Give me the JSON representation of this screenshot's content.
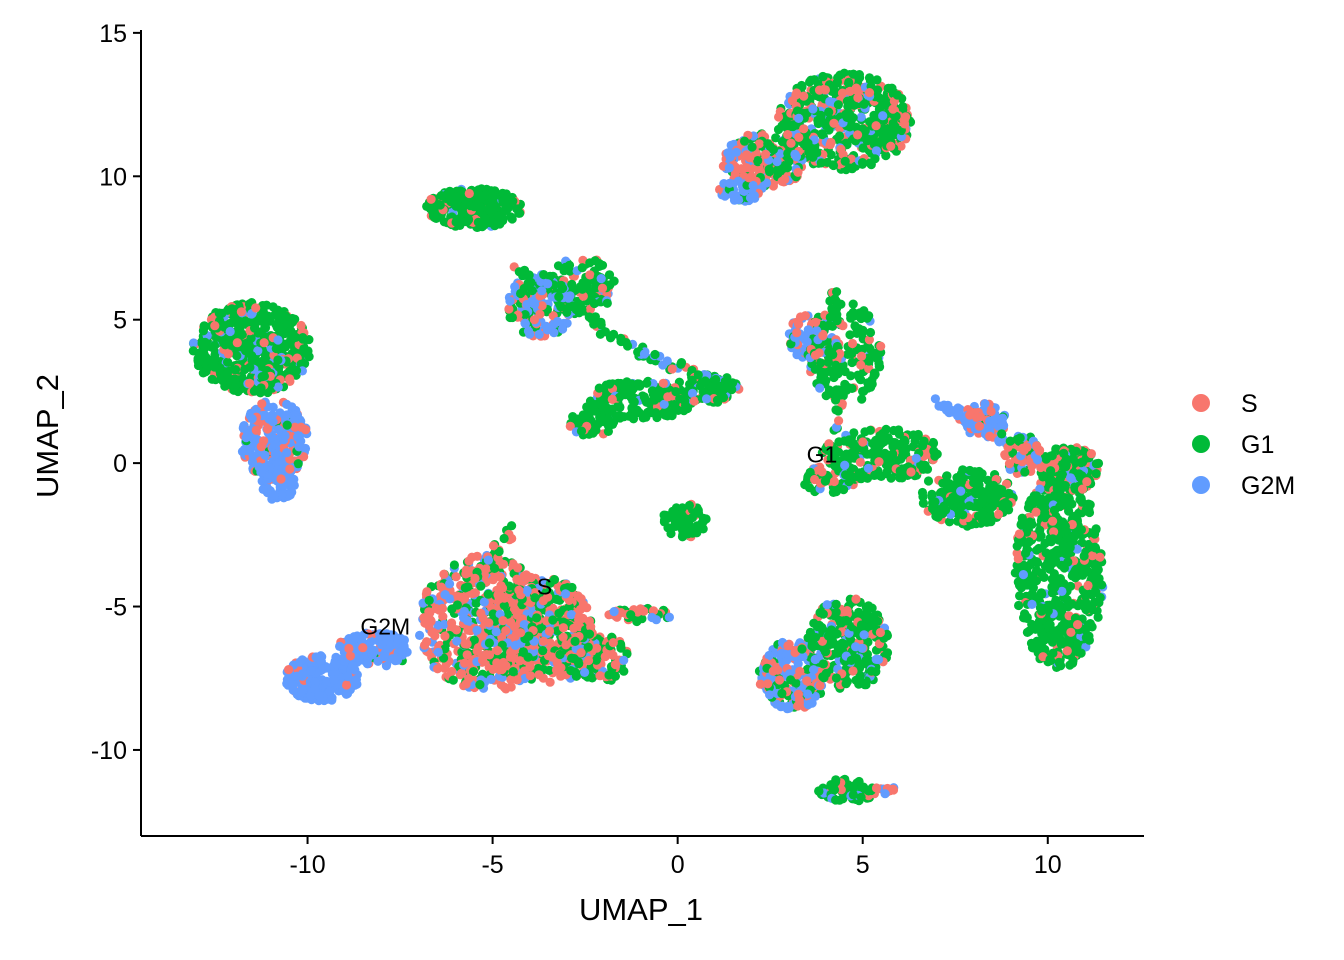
{
  "chart_data": {
    "type": "scatter",
    "title": "",
    "xlabel": "UMAP_1",
    "ylabel": "UMAP_2",
    "xlim": [
      -14.5,
      12.6
    ],
    "ylim": [
      -13.0,
      15.1
    ],
    "x_ticks": [
      -10,
      -5,
      0,
      5,
      10
    ],
    "y_ticks": [
      -10,
      -5,
      0,
      5,
      10,
      15
    ],
    "x_tick_labels": [
      "-10",
      "-5",
      "0",
      "5",
      "10"
    ],
    "y_tick_labels": [
      "-10",
      "-5",
      "0",
      "5",
      "10",
      "15"
    ],
    "grid": false,
    "legend": {
      "position": "right",
      "entries": [
        {
          "name": "S",
          "color": "#F8766D"
        },
        {
          "name": "G1",
          "color": "#00BA38"
        },
        {
          "name": "G2M",
          "color": "#619CFF"
        }
      ]
    },
    "series": [
      {
        "name": "S",
        "color": "#F8766D"
      },
      {
        "name": "G1",
        "color": "#00BA38"
      },
      {
        "name": "G2M",
        "color": "#619CFF"
      }
    ],
    "clusters": [
      {
        "cx": -11.5,
        "cy": 4.0,
        "rx": 1.6,
        "ry": 1.6,
        "n": 520,
        "mix": [
          0.12,
          0.8,
          0.08
        ]
      },
      {
        "cx": -10.9,
        "cy": 0.8,
        "rx": 0.9,
        "ry": 1.4,
        "n": 260,
        "mix": [
          0.25,
          0.05,
          0.7
        ]
      },
      {
        "cx": -10.8,
        "cy": -0.6,
        "rx": 0.5,
        "ry": 0.7,
        "n": 70,
        "mix": [
          0.0,
          0.0,
          1.0
        ]
      },
      {
        "cx": -9.6,
        "cy": -7.5,
        "rx": 1.0,
        "ry": 0.8,
        "n": 190,
        "mix": [
          0.03,
          0.0,
          0.97
        ]
      },
      {
        "cx": -8.2,
        "cy": -6.5,
        "rx": 1.0,
        "ry": 0.6,
        "n": 120,
        "mix": [
          0.15,
          0.05,
          0.8
        ]
      },
      {
        "cx": -5.2,
        "cy": -5.6,
        "rx": 1.8,
        "ry": 2.4,
        "n": 520,
        "mix": [
          0.55,
          0.25,
          0.2
        ]
      },
      {
        "cx": -3.8,
        "cy": -5.8,
        "rx": 1.5,
        "ry": 1.9,
        "n": 380,
        "mix": [
          0.45,
          0.45,
          0.1
        ]
      },
      {
        "cx": -2.3,
        "cy": -6.8,
        "rx": 1.0,
        "ry": 0.9,
        "n": 130,
        "mix": [
          0.35,
          0.55,
          0.1
        ]
      },
      {
        "cx": -1.0,
        "cy": -5.3,
        "rx": 0.9,
        "ry": 0.25,
        "n": 40,
        "mix": [
          0.35,
          0.35,
          0.3
        ]
      },
      {
        "cx": -5.5,
        "cy": 8.9,
        "rx": 1.3,
        "ry": 0.7,
        "n": 240,
        "mix": [
          0.1,
          0.85,
          0.05
        ]
      },
      {
        "cx": -3.7,
        "cy": 5.5,
        "rx": 0.9,
        "ry": 1.1,
        "n": 160,
        "mix": [
          0.3,
          0.3,
          0.4
        ]
      },
      {
        "cx": -2.6,
        "cy": 6.2,
        "rx": 0.9,
        "ry": 1.0,
        "n": 110,
        "mix": [
          0.2,
          0.7,
          0.1
        ]
      },
      {
        "cx": -1.0,
        "cy": 2.2,
        "rx": 1.4,
        "ry": 0.7,
        "n": 170,
        "mix": [
          0.08,
          0.85,
          0.07
        ]
      },
      {
        "cx": 0.8,
        "cy": 2.6,
        "rx": 0.9,
        "ry": 0.5,
        "n": 90,
        "mix": [
          0.15,
          0.75,
          0.1
        ]
      },
      {
        "cx": -2.3,
        "cy": 1.5,
        "rx": 0.7,
        "ry": 0.6,
        "n": 50,
        "mix": [
          0.05,
          0.9,
          0.05
        ]
      },
      {
        "cx": 0.2,
        "cy": -2.0,
        "rx": 0.6,
        "ry": 0.6,
        "n": 70,
        "mix": [
          0.05,
          0.95,
          0.0
        ]
      },
      {
        "cx": 4.5,
        "cy": 11.9,
        "rx": 1.8,
        "ry": 1.7,
        "n": 520,
        "mix": [
          0.25,
          0.65,
          0.1
        ]
      },
      {
        "cx": 2.3,
        "cy": 10.5,
        "rx": 1.1,
        "ry": 1.0,
        "n": 200,
        "mix": [
          0.4,
          0.35,
          0.25
        ]
      },
      {
        "cx": 1.7,
        "cy": 9.5,
        "rx": 0.6,
        "ry": 0.4,
        "n": 60,
        "mix": [
          0.05,
          0.05,
          0.9
        ]
      },
      {
        "cx": 4.5,
        "cy": 3.8,
        "rx": 1.0,
        "ry": 1.8,
        "n": 180,
        "mix": [
          0.15,
          0.75,
          0.1
        ]
      },
      {
        "cx": 3.6,
        "cy": 4.4,
        "rx": 0.6,
        "ry": 0.8,
        "n": 70,
        "mix": [
          0.3,
          0.1,
          0.6
        ]
      },
      {
        "cx": 5.5,
        "cy": 0.3,
        "rx": 1.6,
        "ry": 0.9,
        "n": 220,
        "mix": [
          0.15,
          0.8,
          0.05
        ]
      },
      {
        "cx": 4.1,
        "cy": -0.6,
        "rx": 0.8,
        "ry": 0.5,
        "n": 60,
        "mix": [
          0.3,
          0.6,
          0.1
        ]
      },
      {
        "cx": 7.8,
        "cy": -1.2,
        "rx": 1.3,
        "ry": 1.0,
        "n": 200,
        "mix": [
          0.1,
          0.85,
          0.05
        ]
      },
      {
        "cx": 10.3,
        "cy": -3.8,
        "rx": 1.2,
        "ry": 3.4,
        "n": 560,
        "mix": [
          0.12,
          0.85,
          0.03
        ]
      },
      {
        "cx": 10.6,
        "cy": -0.2,
        "rx": 0.8,
        "ry": 0.8,
        "n": 160,
        "mix": [
          0.2,
          0.75,
          0.05
        ]
      },
      {
        "cx": 8.3,
        "cy": 1.5,
        "rx": 0.6,
        "ry": 0.6,
        "n": 90,
        "mix": [
          0.25,
          0.05,
          0.7
        ]
      },
      {
        "cx": 9.3,
        "cy": 0.3,
        "rx": 0.5,
        "ry": 0.7,
        "n": 70,
        "mix": [
          0.5,
          0.3,
          0.2
        ]
      },
      {
        "cx": 4.6,
        "cy": -6.3,
        "rx": 1.1,
        "ry": 1.6,
        "n": 300,
        "mix": [
          0.15,
          0.75,
          0.1
        ]
      },
      {
        "cx": 3.1,
        "cy": -7.4,
        "rx": 0.9,
        "ry": 1.2,
        "n": 220,
        "mix": [
          0.3,
          0.2,
          0.5
        ]
      },
      {
        "cx": 4.6,
        "cy": -11.4,
        "rx": 0.8,
        "ry": 0.4,
        "n": 70,
        "mix": [
          0.1,
          0.85,
          0.05
        ]
      },
      {
        "cx": 5.6,
        "cy": -11.4,
        "rx": 0.3,
        "ry": 0.15,
        "n": 12,
        "mix": [
          0.5,
          0.0,
          0.5
        ]
      }
    ],
    "paths": [
      {
        "from": [
          -4.4,
          6.8
        ],
        "to": [
          -1.0,
          3.8
        ],
        "n": 70,
        "spread": 0.35,
        "mix": [
          0.15,
          0.8,
          0.05
        ]
      },
      {
        "from": [
          -1.0,
          3.8
        ],
        "to": [
          1.2,
          2.8
        ],
        "n": 30,
        "spread": 0.3,
        "mix": [
          0.15,
          0.6,
          0.25
        ]
      },
      {
        "from": [
          7.0,
          2.2
        ],
        "to": [
          8.8,
          0.8
        ],
        "n": 40,
        "spread": 0.25,
        "mix": [
          0.05,
          0.1,
          0.85
        ]
      },
      {
        "from": [
          4.2,
          6.0
        ],
        "to": [
          4.3,
          1.0
        ],
        "n": 40,
        "spread": 0.2,
        "mix": [
          0.05,
          0.9,
          0.05
        ]
      },
      {
        "from": [
          -6.0,
          -5.0
        ],
        "to": [
          -4.5,
          -2.3
        ],
        "n": 40,
        "spread": 0.3,
        "mix": [
          0.5,
          0.45,
          0.05
        ]
      }
    ],
    "annotations": [
      {
        "text": "G1",
        "x": 3.9,
        "y": 0.3
      },
      {
        "text": "S",
        "x": -3.6,
        "y": -4.3
      },
      {
        "text": "G2M",
        "x": -7.9,
        "y": -5.7
      }
    ]
  }
}
